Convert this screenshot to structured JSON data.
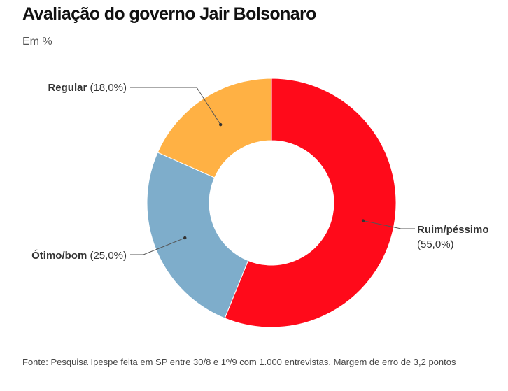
{
  "header": {
    "title": "Avaliação do governo Jair Bolsonaro",
    "subtitle": "Em %"
  },
  "footer": {
    "source": "Fonte: Pesquisa Ipespe feita em SP entre 30/8 e 1º/9 com 1.000 entrevistas. Margem de erro de 3,2 pontos"
  },
  "chart_data": {
    "type": "pie",
    "variant": "donut",
    "title": "Avaliação do governo Jair Bolsonaro",
    "subtitle": "Em %",
    "start": "top",
    "direction": "clockwise",
    "slices": [
      {
        "name": "Ruim/péssimo",
        "value": 55.0,
        "label_value": "(55,0%)",
        "color": "#ff0a1a"
      },
      {
        "name": "Ótimo/bom",
        "value": 25.0,
        "label_value": "(25,0%)",
        "color": "#7eadcb"
      },
      {
        "name": "Regular",
        "value": 18.0,
        "label_value": "(18,0%)",
        "color": "#ffb144"
      }
    ]
  }
}
